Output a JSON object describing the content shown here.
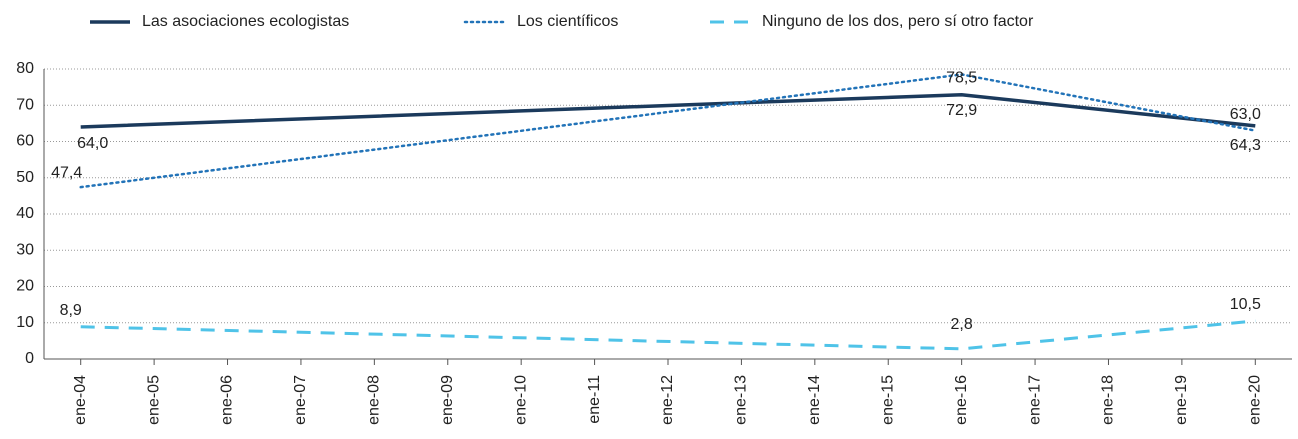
{
  "chart_data": {
    "type": "line",
    "categories": [
      "ene-04",
      "ene-05",
      "ene-06",
      "ene-07",
      "ene-08",
      "ene-09",
      "ene-10",
      "ene-11",
      "ene-12",
      "ene-13",
      "ene-14",
      "ene-15",
      "ene-16",
      "ene-17",
      "ene-18",
      "ene-19",
      "ene-20"
    ],
    "series": [
      {
        "name": "Las asociaciones ecologistas",
        "color": "#1b3a5c",
        "style": "solid",
        "x": [
          "ene-04",
          "ene-16",
          "ene-20"
        ],
        "values": [
          64.0,
          72.9,
          64.3
        ],
        "value_labels": [
          "64,0",
          "72,9",
          "64,3"
        ]
      },
      {
        "name": "Los científicos",
        "color": "#2273b8",
        "style": "dotted",
        "x": [
          "ene-04",
          "ene-16",
          "ene-20"
        ],
        "values": [
          47.4,
          78.5,
          63.0
        ],
        "value_labels": [
          "47,4",
          "78,5",
          "63,0"
        ]
      },
      {
        "name": "Ninguno de los dos, pero sí otro factor",
        "color": "#4fc3e8",
        "style": "dashed",
        "x": [
          "ene-04",
          "ene-16",
          "ene-20"
        ],
        "values": [
          8.9,
          2.8,
          10.5
        ],
        "value_labels": [
          "8,9",
          "2,8",
          "10,5"
        ]
      }
    ],
    "ylim": [
      0,
      80
    ],
    "yticks": [
      0,
      10,
      20,
      30,
      40,
      50,
      60,
      70,
      80
    ],
    "grid": true,
    "legend": "top"
  }
}
